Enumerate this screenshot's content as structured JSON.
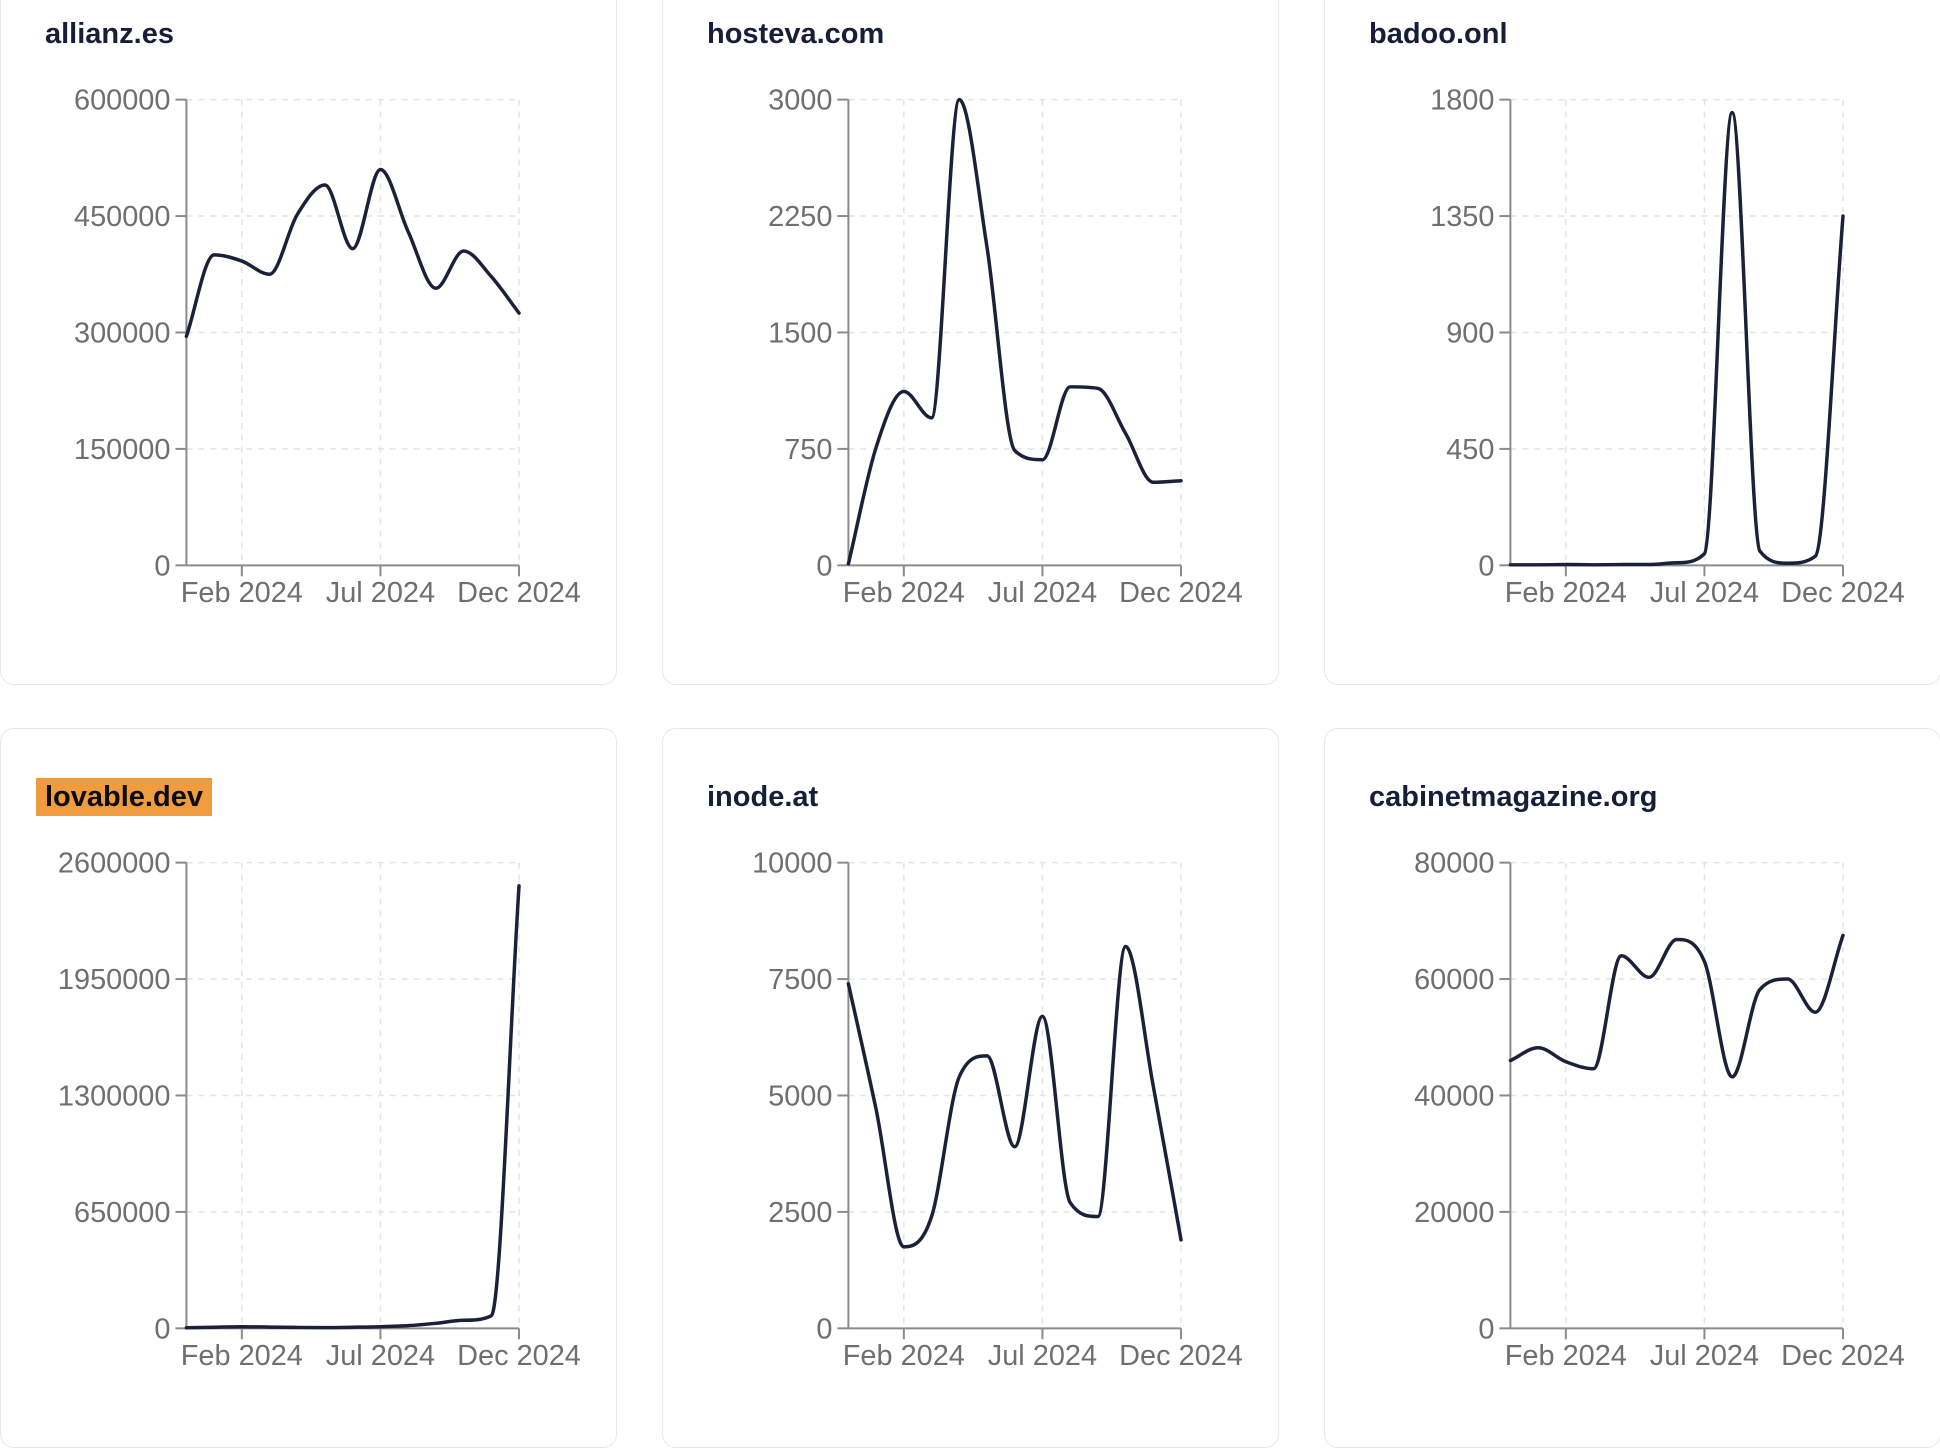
{
  "page": {
    "background_color": "#ffffff",
    "card_background": "#ffffff",
    "card_border_color": "#e7e7eb",
    "title_color": "#161f38",
    "highlight_color": "#f09c3e",
    "line_color": "#1b2138",
    "axis_color": "#8b8b8b",
    "tick_label_color": "#6f6f6f",
    "gridline_color": "#e4e4e4"
  },
  "chart_data": [
    {
      "type": "line",
      "title": "allianz.es",
      "highlighted": false,
      "x": [
        "Dec 2023",
        "Jan 2024",
        "Feb 2024",
        "Mar 2024",
        "Apr 2024",
        "May 2024",
        "Jun 2024",
        "Jul 2024",
        "Aug 2024",
        "Sep 2024",
        "Oct 2024",
        "Nov 2024",
        "Dec 2024"
      ],
      "values": [
        295000,
        400000,
        392000,
        375000,
        452000,
        490000,
        408000,
        510000,
        430000,
        357000,
        405000,
        372000,
        325000
      ],
      "y_ticks": [
        0,
        150000,
        300000,
        450000,
        600000
      ],
      "ylim": [
        0,
        600000
      ],
      "x_tick_labels": [
        "Feb 2024",
        "Jul 2024",
        "Dec 2024"
      ],
      "x_tick_indices": [
        2,
        7,
        12
      ],
      "grid": true,
      "legend": "none"
    },
    {
      "type": "line",
      "title": "hosteva.com",
      "highlighted": false,
      "x": [
        "Dec 2023",
        "Jan 2024",
        "Feb 2024",
        "Mar 2024",
        "Apr 2024",
        "May 2024",
        "Jun 2024",
        "Jul 2024",
        "Aug 2024",
        "Sep 2024",
        "Oct 2024",
        "Nov 2024",
        "Dec 2024"
      ],
      "values": [
        10,
        760,
        1120,
        950,
        3000,
        2050,
        740,
        680,
        1150,
        1140,
        850,
        535,
        545
      ],
      "y_ticks": [
        0,
        750,
        1500,
        2250,
        3000
      ],
      "ylim": [
        0,
        3000
      ],
      "x_tick_labels": [
        "Feb 2024",
        "Jul 2024",
        "Dec 2024"
      ],
      "x_tick_indices": [
        2,
        7,
        12
      ],
      "grid": true,
      "legend": "none"
    },
    {
      "type": "line",
      "title": "badoo.onl",
      "highlighted": false,
      "x": [
        "Dec 2023",
        "Jan 2024",
        "Feb 2024",
        "Mar 2024",
        "Apr 2024",
        "May 2024",
        "Jun 2024",
        "Jul 2024",
        "Aug 2024",
        "Sep 2024",
        "Oct 2024",
        "Nov 2024",
        "Dec 2024"
      ],
      "values": [
        2,
        2,
        3,
        2,
        3,
        3,
        10,
        45,
        1750,
        55,
        8,
        35,
        1350
      ],
      "y_ticks": [
        0,
        450,
        900,
        1350,
        1800
      ],
      "ylim": [
        0,
        1800
      ],
      "x_tick_labels": [
        "Feb 2024",
        "Jul 2024",
        "Dec 2024"
      ],
      "x_tick_indices": [
        2,
        7,
        12
      ],
      "grid": true,
      "legend": "none"
    },
    {
      "type": "line",
      "title": "lovable.dev",
      "highlighted": true,
      "x": [
        "Dec 2023",
        "Jan 2024",
        "Feb 2024",
        "Mar 2024",
        "Apr 2024",
        "May 2024",
        "Jun 2024",
        "Jul 2024",
        "Aug 2024",
        "Sep 2024",
        "Oct 2024",
        "Nov 2024",
        "Dec 2024"
      ],
      "values": [
        3000,
        6000,
        9000,
        7000,
        5000,
        4000,
        6000,
        9000,
        15000,
        28000,
        45000,
        70000,
        2470000
      ],
      "y_ticks": [
        0,
        650000,
        1300000,
        1950000,
        2600000
      ],
      "ylim": [
        0,
        2600000
      ],
      "x_tick_labels": [
        "Feb 2024",
        "Jul 2024",
        "Dec 2024"
      ],
      "x_tick_indices": [
        2,
        7,
        12
      ],
      "grid": true,
      "legend": "none"
    },
    {
      "type": "line",
      "title": "inode.at",
      "highlighted": false,
      "x": [
        "Dec 2023",
        "Jan 2024",
        "Feb 2024",
        "Mar 2024",
        "Apr 2024",
        "May 2024",
        "Jun 2024",
        "Jul 2024",
        "Aug 2024",
        "Sep 2024",
        "Oct 2024",
        "Nov 2024",
        "Dec 2024"
      ],
      "values": [
        7400,
        4700,
        1750,
        2400,
        5400,
        5850,
        3900,
        6700,
        2700,
        2400,
        8200,
        5200,
        1900
      ],
      "y_ticks": [
        0,
        2500,
        5000,
        7500,
        10000
      ],
      "ylim": [
        0,
        10000
      ],
      "x_tick_labels": [
        "Feb 2024",
        "Jul 2024",
        "Dec 2024"
      ],
      "x_tick_indices": [
        2,
        7,
        12
      ],
      "grid": true,
      "legend": "none"
    },
    {
      "type": "line",
      "title": "cabinetmagazine.org",
      "highlighted": false,
      "x": [
        "Dec 2023",
        "Jan 2024",
        "Feb 2024",
        "Mar 2024",
        "Apr 2024",
        "May 2024",
        "Jun 2024",
        "Jul 2024",
        "Aug 2024",
        "Sep 2024",
        "Oct 2024",
        "Nov 2024",
        "Dec 2024"
      ],
      "values": [
        46000,
        48200,
        45800,
        44600,
        64000,
        60300,
        66800,
        63000,
        43200,
        58200,
        60000,
        54300,
        67500
      ],
      "y_ticks": [
        0,
        20000,
        40000,
        60000,
        80000
      ],
      "ylim": [
        0,
        80000
      ],
      "x_tick_labels": [
        "Feb 2024",
        "Jul 2024",
        "Dec 2024"
      ],
      "x_tick_indices": [
        2,
        7,
        12
      ],
      "grid": true,
      "legend": "none"
    }
  ]
}
